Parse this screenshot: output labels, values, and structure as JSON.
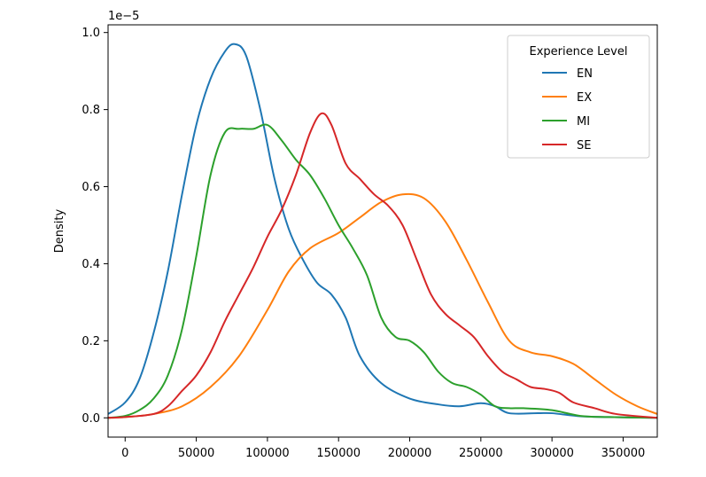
{
  "chart_data": {
    "type": "line",
    "title": "",
    "xlabel": "",
    "ylabel": "Density",
    "y_offset_label": "1e−5",
    "xlim": [
      -12000,
      374000
    ],
    "ylim": [
      -0.05,
      1.02
    ],
    "x_ticks": [
      0,
      50000,
      100000,
      150000,
      200000,
      250000,
      300000,
      350000
    ],
    "y_ticks": [
      0.0,
      0.2,
      0.4,
      0.6,
      0.8,
      1.0
    ],
    "y_tick_labels": [
      "0.0",
      "0.2",
      "0.4",
      "0.6",
      "0.8",
      "1.0"
    ],
    "grid": false,
    "legend": {
      "title": "Experience Level",
      "position": "top-right"
    },
    "series": [
      {
        "name": "EN",
        "color": "#1f77b4",
        "points": [
          [
            -12000,
            0.01
          ],
          [
            0,
            0.04
          ],
          [
            10000,
            0.1
          ],
          [
            20000,
            0.22
          ],
          [
            30000,
            0.38
          ],
          [
            40000,
            0.58
          ],
          [
            50000,
            0.76
          ],
          [
            60000,
            0.88
          ],
          [
            70000,
            0.95
          ],
          [
            77000,
            0.97
          ],
          [
            85000,
            0.94
          ],
          [
            95000,
            0.8
          ],
          [
            105000,
            0.62
          ],
          [
            115000,
            0.49
          ],
          [
            125000,
            0.41
          ],
          [
            135000,
            0.35
          ],
          [
            145000,
            0.32
          ],
          [
            155000,
            0.26
          ],
          [
            165000,
            0.16
          ],
          [
            180000,
            0.09
          ],
          [
            200000,
            0.05
          ],
          [
            220000,
            0.035
          ],
          [
            235000,
            0.03
          ],
          [
            250000,
            0.038
          ],
          [
            260000,
            0.03
          ],
          [
            270000,
            0.012
          ],
          [
            290000,
            0.012
          ],
          [
            300000,
            0.012
          ],
          [
            320000,
            0.004
          ],
          [
            340000,
            0.002
          ],
          [
            374000,
            0.0
          ]
        ]
      },
      {
        "name": "EX",
        "color": "#ff7f0e",
        "points": [
          [
            -12000,
            0.0
          ],
          [
            0,
            0.002
          ],
          [
            20000,
            0.01
          ],
          [
            40000,
            0.03
          ],
          [
            60000,
            0.08
          ],
          [
            80000,
            0.16
          ],
          [
            100000,
            0.28
          ],
          [
            115000,
            0.38
          ],
          [
            130000,
            0.44
          ],
          [
            150000,
            0.48
          ],
          [
            165000,
            0.52
          ],
          [
            180000,
            0.56
          ],
          [
            195000,
            0.58
          ],
          [
            210000,
            0.57
          ],
          [
            225000,
            0.51
          ],
          [
            240000,
            0.41
          ],
          [
            255000,
            0.3
          ],
          [
            270000,
            0.2
          ],
          [
            285000,
            0.17
          ],
          [
            300000,
            0.16
          ],
          [
            315000,
            0.14
          ],
          [
            330000,
            0.1
          ],
          [
            345000,
            0.06
          ],
          [
            360000,
            0.03
          ],
          [
            374000,
            0.01
          ]
        ]
      },
      {
        "name": "MI",
        "color": "#2ca02c",
        "points": [
          [
            -12000,
            0.0
          ],
          [
            0,
            0.005
          ],
          [
            10000,
            0.02
          ],
          [
            20000,
            0.05
          ],
          [
            30000,
            0.11
          ],
          [
            40000,
            0.23
          ],
          [
            50000,
            0.42
          ],
          [
            60000,
            0.63
          ],
          [
            70000,
            0.74
          ],
          [
            80000,
            0.75
          ],
          [
            90000,
            0.75
          ],
          [
            100000,
            0.76
          ],
          [
            110000,
            0.72
          ],
          [
            120000,
            0.67
          ],
          [
            130000,
            0.63
          ],
          [
            140000,
            0.57
          ],
          [
            150000,
            0.5
          ],
          [
            160000,
            0.44
          ],
          [
            170000,
            0.37
          ],
          [
            180000,
            0.26
          ],
          [
            190000,
            0.21
          ],
          [
            200000,
            0.2
          ],
          [
            210000,
            0.17
          ],
          [
            220000,
            0.12
          ],
          [
            230000,
            0.09
          ],
          [
            240000,
            0.08
          ],
          [
            250000,
            0.06
          ],
          [
            260000,
            0.03
          ],
          [
            270000,
            0.025
          ],
          [
            280000,
            0.025
          ],
          [
            300000,
            0.02
          ],
          [
            320000,
            0.005
          ],
          [
            340000,
            0.002
          ],
          [
            374000,
            0.0
          ]
        ]
      },
      {
        "name": "SE",
        "color": "#d62728",
        "points": [
          [
            -12000,
            0.0
          ],
          [
            0,
            0.002
          ],
          [
            20000,
            0.01
          ],
          [
            30000,
            0.03
          ],
          [
            40000,
            0.07
          ],
          [
            50000,
            0.11
          ],
          [
            60000,
            0.17
          ],
          [
            70000,
            0.25
          ],
          [
            80000,
            0.32
          ],
          [
            90000,
            0.39
          ],
          [
            100000,
            0.47
          ],
          [
            110000,
            0.54
          ],
          [
            120000,
            0.63
          ],
          [
            130000,
            0.74
          ],
          [
            138000,
            0.79
          ],
          [
            145000,
            0.76
          ],
          [
            155000,
            0.66
          ],
          [
            165000,
            0.62
          ],
          [
            175000,
            0.58
          ],
          [
            185000,
            0.55
          ],
          [
            195000,
            0.5
          ],
          [
            205000,
            0.41
          ],
          [
            215000,
            0.32
          ],
          [
            225000,
            0.27
          ],
          [
            235000,
            0.24
          ],
          [
            245000,
            0.21
          ],
          [
            255000,
            0.16
          ],
          [
            265000,
            0.12
          ],
          [
            275000,
            0.1
          ],
          [
            285000,
            0.08
          ],
          [
            295000,
            0.075
          ],
          [
            305000,
            0.065
          ],
          [
            315000,
            0.04
          ],
          [
            330000,
            0.025
          ],
          [
            345000,
            0.01
          ],
          [
            374000,
            0.0
          ]
        ]
      }
    ]
  }
}
